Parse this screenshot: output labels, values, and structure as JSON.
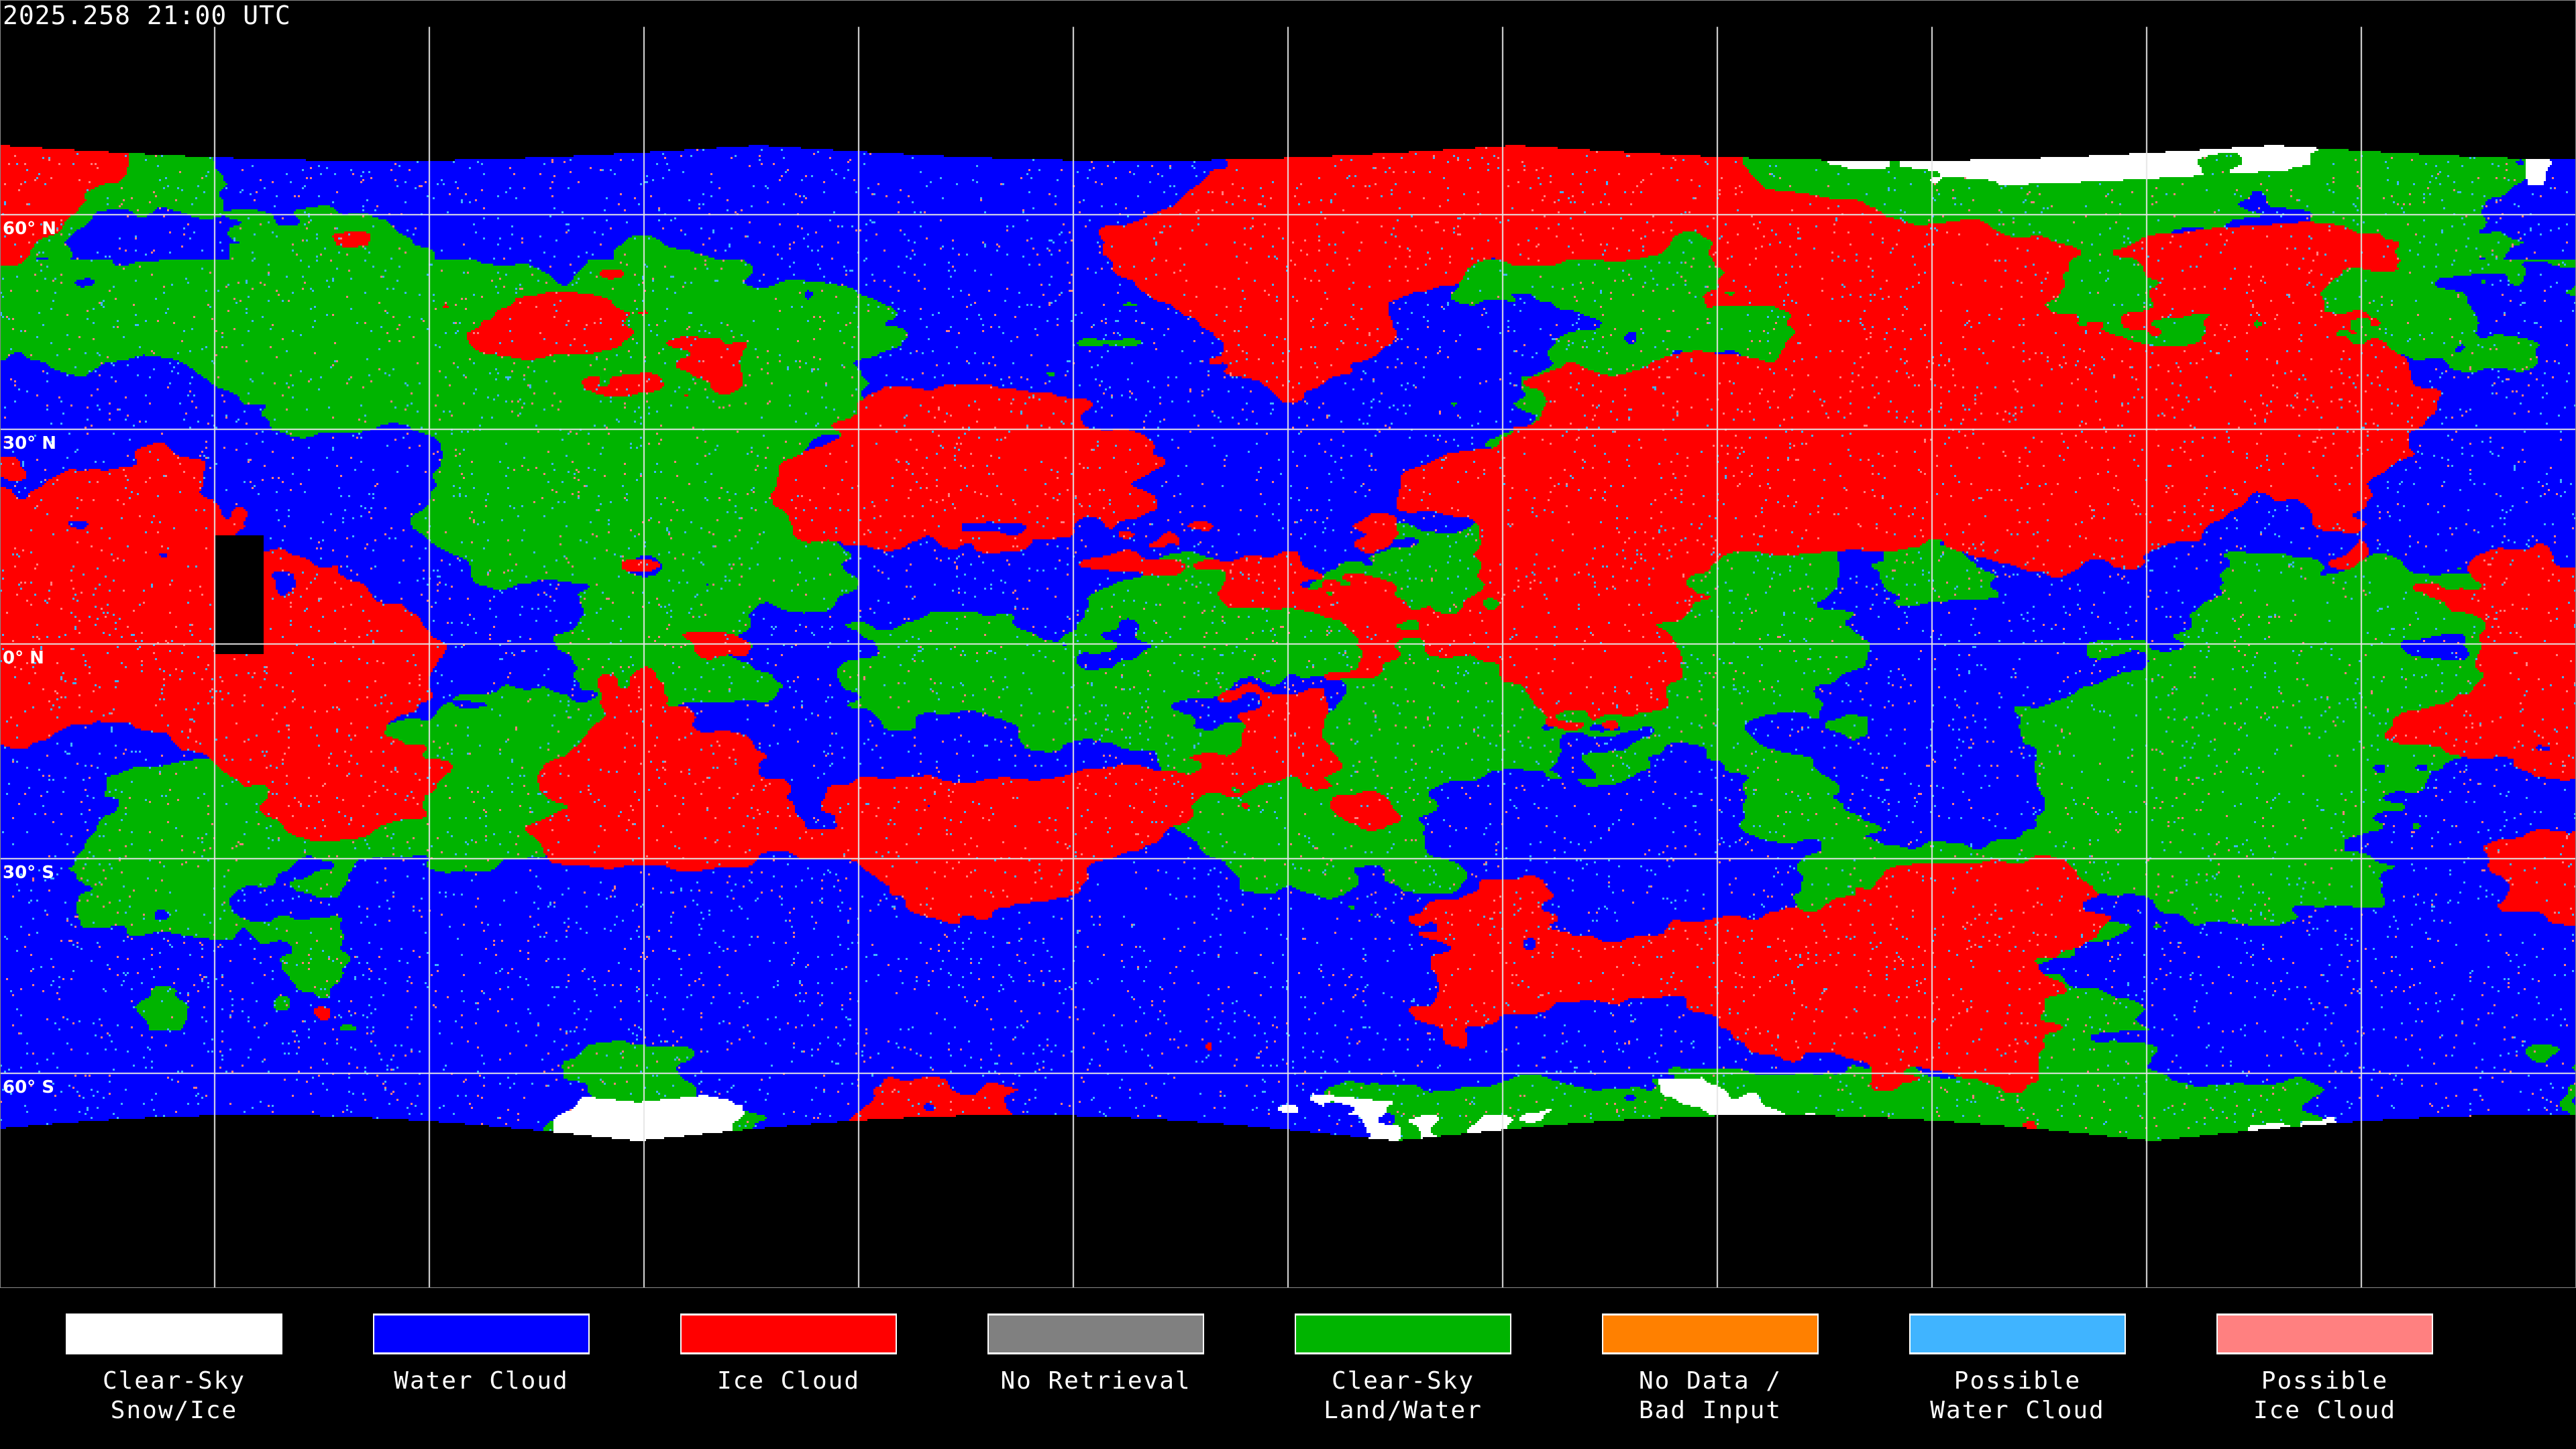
{
  "title": "2025.258 21:00 UTC",
  "latitude_labels": [
    "60° N",
    "30° N",
    "0° N",
    "30° S",
    "60° S"
  ],
  "legend": [
    {
      "label_line1": "Clear-Sky",
      "label_line2": "Snow/Ice",
      "color": "#ffffff"
    },
    {
      "label_line1": "Water Cloud",
      "label_line2": "",
      "color": "#0000ff"
    },
    {
      "label_line1": "Ice Cloud",
      "label_line2": "",
      "color": "#ff0000"
    },
    {
      "label_line1": "No Retrieval",
      "label_line2": "",
      "color": "#808080"
    },
    {
      "label_line1": "Clear-Sky",
      "label_line2": "Land/Water",
      "color": "#00b400"
    },
    {
      "label_line1": "No Data /",
      "label_line2": "Bad Input",
      "color": "#ff8000"
    },
    {
      "label_line1": "Possible",
      "label_line2": "Water Cloud",
      "color": "#40b4ff"
    },
    {
      "label_line1": "Possible",
      "label_line2": "Ice Cloud",
      "color": "#ff8080"
    }
  ]
}
